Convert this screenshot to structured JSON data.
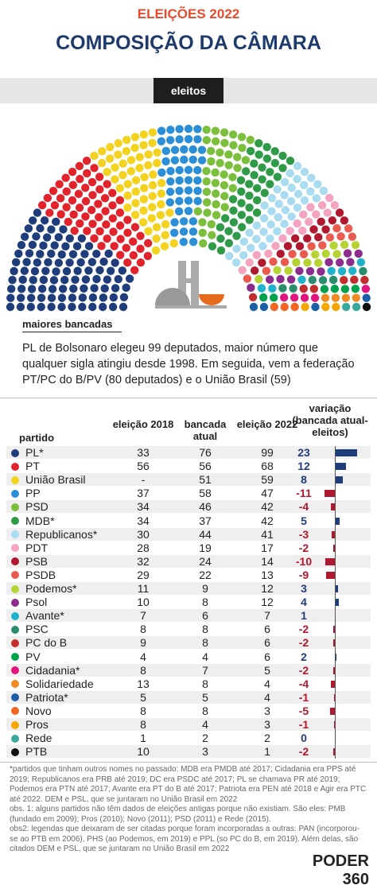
{
  "header": {
    "kicker": "ELEIÇÕES 2022",
    "title": "COMPOSIÇÃO DA CÂMARA",
    "tab": "eleitos"
  },
  "summary": {
    "title": "maiores bancadas",
    "text": "PL de Bolsonaro elegeu 99 deputados, maior número que qualquer sigla atingiu desde 1998. Em seguida, vem a federação PT/PC do B/PV (80 deputados) e o União Brasil (59)"
  },
  "chart_data": {
    "type": "parliament",
    "seats_from": "table.rows",
    "bar_scale_max": 25
  },
  "table": {
    "columns": [
      "partido",
      "eleição 2018",
      "bancada atual",
      "eleição 2022",
      "variação (bancada atual-eleitos)"
    ],
    "rows": [
      {
        "party": "PL*",
        "color": "#1f3d7a",
        "e2018": 33,
        "atual": 76,
        "e2022": 99,
        "var": 23
      },
      {
        "party": "PT",
        "color": "#e3232b",
        "e2018": 56,
        "atual": 56,
        "e2022": 68,
        "var": 12
      },
      {
        "party": "União Brasil",
        "color": "#f3d31f",
        "e2018": "-",
        "atual": 51,
        "e2022": 59,
        "var": 8
      },
      {
        "party": "PP",
        "color": "#2a8fd6",
        "e2018": 37,
        "atual": 58,
        "e2022": 47,
        "var": -11
      },
      {
        "party": "PSD",
        "color": "#7cbf3c",
        "e2018": 34,
        "atual": 46,
        "e2022": 42,
        "var": -4
      },
      {
        "party": "MDB*",
        "color": "#2f9a48",
        "e2018": 34,
        "atual": 37,
        "e2022": 42,
        "var": 5
      },
      {
        "party": "Republicanos*",
        "color": "#a9dcf1",
        "e2018": 30,
        "atual": 44,
        "e2022": 41,
        "var": -3
      },
      {
        "party": "PDT",
        "color": "#f4a3c0",
        "e2018": 28,
        "atual": 19,
        "e2022": 17,
        "var": -2
      },
      {
        "party": "PSB",
        "color": "#b0182f",
        "e2018": 32,
        "atual": 24,
        "e2022": 14,
        "var": -10
      },
      {
        "party": "PSDB",
        "color": "#ea5a4e",
        "e2018": 29,
        "atual": 22,
        "e2022": 13,
        "var": -9
      },
      {
        "party": "Podemos*",
        "color": "#b6d334",
        "e2018": 11,
        "atual": 9,
        "e2022": 12,
        "var": 3
      },
      {
        "party": "Psol",
        "color": "#8c2c8c",
        "e2018": 10,
        "atual": 8,
        "e2022": 12,
        "var": 4
      },
      {
        "party": "Avante*",
        "color": "#1eb2cb",
        "e2018": 7,
        "atual": 6,
        "e2022": 7,
        "var": 1
      },
      {
        "party": "PSC",
        "color": "#2a8d6c",
        "e2018": 8,
        "atual": 8,
        "e2022": 6,
        "var": -2
      },
      {
        "party": "PC do B",
        "color": "#c42d2d",
        "e2018": 9,
        "atual": 8,
        "e2022": 6,
        "var": -2
      },
      {
        "party": "PV",
        "color": "#00a24b",
        "e2018": 4,
        "atual": 4,
        "e2022": 6,
        "var": 2
      },
      {
        "party": "Cidadania*",
        "color": "#e0157f",
        "e2018": 8,
        "atual": 7,
        "e2022": 5,
        "var": -2
      },
      {
        "party": "Solidariedade",
        "color": "#f08a24",
        "e2018": 13,
        "atual": 8,
        "e2022": 4,
        "var": -4
      },
      {
        "party": "Patriota*",
        "color": "#1a5fa8",
        "e2018": 5,
        "atual": 5,
        "e2022": 4,
        "var": -1
      },
      {
        "party": "Novo",
        "color": "#f26522",
        "e2018": 8,
        "atual": 8,
        "e2022": 3,
        "var": -5
      },
      {
        "party": "Pros",
        "color": "#f7a600",
        "e2018": 8,
        "atual": 4,
        "e2022": 3,
        "var": -1
      },
      {
        "party": "Rede",
        "color": "#3aa89d",
        "e2018": 1,
        "atual": 2,
        "e2022": 2,
        "var": 0
      },
      {
        "party": "PTB",
        "color": "#111111",
        "e2018": 10,
        "atual": 3,
        "e2022": 1,
        "var": -2
      }
    ]
  },
  "notes": [
    "*partidos que tinham outros nomes no passado: MDB era PMDB até 2017; Cidadania era PPS até 2019; Republicanos era PRB até 2019; DC era PSDC até 2017; PL se chamava PR até 2019; Podemos era PTN até 2017; Avante era PT do B até 2017; Patriota era PEN até 2018 e Agir era PTC até 2022. DEM e PSL, que se juntaram no União Brasil em 2022",
    "obs. 1: alguns partidos não têm dados de eleições antigas porque não existiam. São eles: PMB (fundado em 2009); Pros (2010); Novo (2011); PSD (2011) e Rede (2015).",
    "obs2: legendas que deixaram de ser citadas porque foram incorporadas a outras: PAN (incorporou-se ao PTB em 2006), PHS (ao Podemos, em 2019) e PPL (so PC do B, em 2019). Além delas, são citados DEM e PSL, que se juntaram no União Brasil em 2022"
  ],
  "brand": "PODER 360"
}
